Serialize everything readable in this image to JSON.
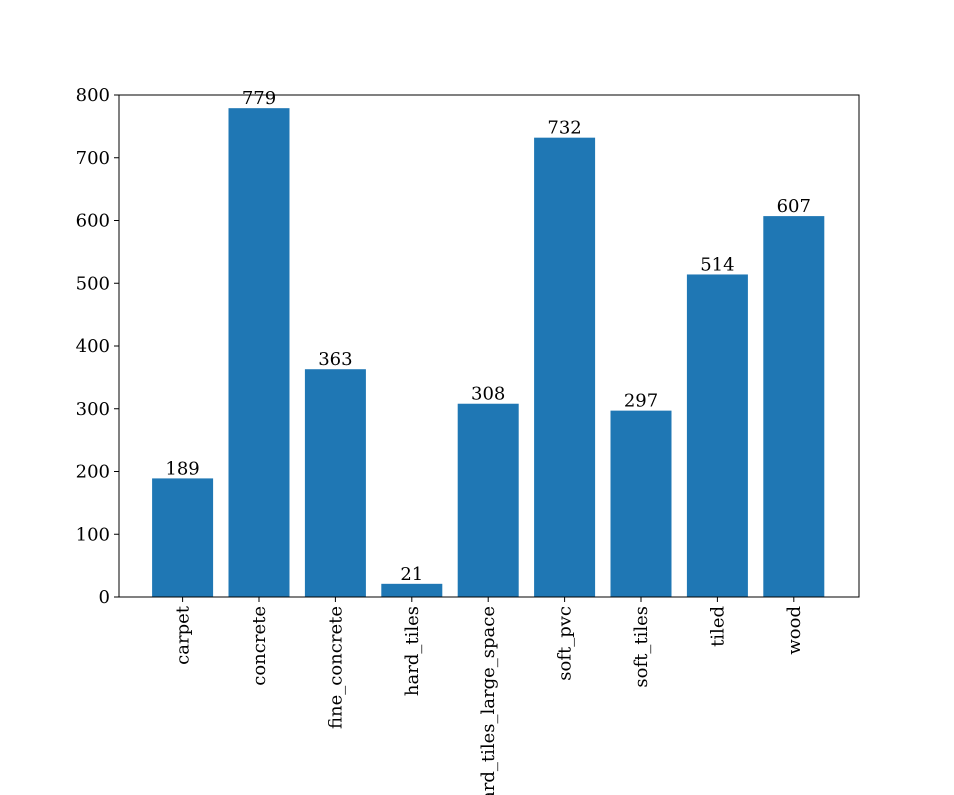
{
  "chart_data": {
    "type": "bar",
    "categories": [
      "carpet",
      "concrete",
      "fine_concrete",
      "hard_tiles",
      "hard_tiles_large_space",
      "soft_pvc",
      "soft_tiles",
      "tiled",
      "wood"
    ],
    "values": [
      189,
      779,
      363,
      21,
      308,
      732,
      297,
      514,
      607
    ],
    "data_labels": [
      "189",
      "779",
      "363",
      "21",
      "308",
      "732",
      "297",
      "514",
      "607"
    ],
    "title": "",
    "xlabel": "",
    "ylabel": "",
    "ylim": [
      0,
      800
    ],
    "yticks": [
      0,
      100,
      200,
      300,
      400,
      500,
      600,
      700,
      800
    ],
    "ytick_labels": [
      "0",
      "100",
      "200",
      "300",
      "400",
      "500",
      "600",
      "700",
      "800"
    ],
    "xtick_rotation": "vertical",
    "grid": false,
    "legend": "none",
    "bar_color": "#1f77b4"
  }
}
